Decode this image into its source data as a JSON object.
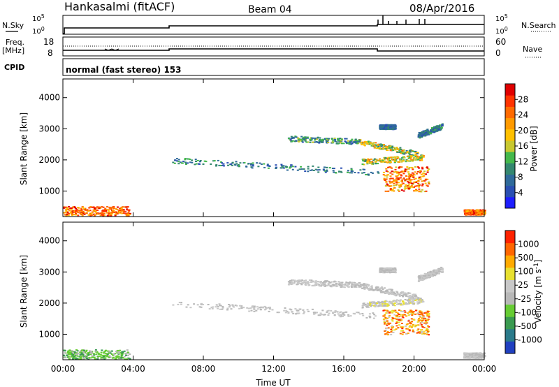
{
  "header": {
    "station": "Hankasalmi (fitACF)",
    "beam": "Beam 04",
    "date": "08/Apr/2016"
  },
  "side_labels": {
    "nsky": "N.Sky",
    "nsearch": "N.Search",
    "freq": "Freq.",
    "freq_unit": "[MHz]",
    "nave": "Nave",
    "cpid": "CPID"
  },
  "noise_axis": {
    "top": "10^5",
    "bottom": "10^0"
  },
  "freq_axis": {
    "left_ticks": [
      "18",
      "8"
    ],
    "right_ticks": [
      "60",
      "0"
    ]
  },
  "cpid_text": "normal (fast stereo) 153",
  "chart_data": [
    {
      "type": "heatmap",
      "title": "",
      "xlabel": "Time UT",
      "ylabel": "Slant Range [km]",
      "xlim": [
        0,
        24
      ],
      "ylim": [
        180,
        4600
      ],
      "x_ticks": [
        "00:00",
        "04:00",
        "08:00",
        "12:00",
        "16:00",
        "20:00",
        "00:00"
      ],
      "y_ticks": [
        1000,
        2000,
        3000,
        4000
      ],
      "colorbar": {
        "label": "Power [dB]",
        "ticks": [
          "4",
          "8",
          "12",
          "16",
          "20",
          "24",
          "28"
        ],
        "colors": [
          "#1e1eff",
          "#2a4fb2",
          "#2f6a9a",
          "#34876f",
          "#44b84b",
          "#c8c830",
          "#ffc000",
          "#ff9a00",
          "#ff6a00",
          "#ff3300",
          "#e00000"
        ]
      },
      "structures": [
        {
          "kind": "blob",
          "t": [
            0.0,
            3.8
          ],
          "r": [
            220,
            520
          ],
          "level": [
            6,
            10
          ]
        },
        {
          "kind": "line",
          "t": [
            6.2,
            18.0
          ],
          "r": [
            2000,
            1600
          ],
          "level": [
            1,
            4
          ]
        },
        {
          "kind": "line",
          "t": [
            12.8,
            16.8
          ],
          "r": [
            2700,
            2600
          ],
          "level": [
            1,
            5
          ]
        },
        {
          "kind": "line",
          "t": [
            16.8,
            20.2
          ],
          "r": [
            2600,
            2200
          ],
          "level": [
            2,
            8
          ]
        },
        {
          "kind": "line",
          "t": [
            17.0,
            20.5
          ],
          "r": [
            1950,
            2100
          ],
          "level": [
            3,
            8
          ]
        },
        {
          "kind": "blob",
          "t": [
            18.2,
            20.8
          ],
          "r": [
            1000,
            1800
          ],
          "level": [
            5,
            10
          ]
        },
        {
          "kind": "blob",
          "t": [
            18.0,
            18.9
          ],
          "r": [
            3000,
            3150
          ],
          "level": [
            1,
            3
          ]
        },
        {
          "kind": "line",
          "t": [
            20.2,
            21.6
          ],
          "r": [
            2800,
            3100
          ],
          "level": [
            1,
            4
          ]
        },
        {
          "kind": "blob",
          "t": [
            22.8,
            24.0
          ],
          "r": [
            250,
            420
          ],
          "level": [
            6,
            10
          ]
        }
      ]
    },
    {
      "type": "heatmap",
      "title": "",
      "xlabel": "Time UT",
      "ylabel": "Slant Range [km]",
      "xlim": [
        0,
        24
      ],
      "ylim": [
        180,
        4600
      ],
      "x_ticks": [
        "00:00",
        "04:00",
        "08:00",
        "12:00",
        "16:00",
        "20:00",
        "00:00"
      ],
      "y_ticks": [
        1000,
        2000,
        3000,
        4000
      ],
      "colorbar": {
        "label": "Velocity [m s-1]",
        "ticks": [
          "1000",
          "500",
          "100",
          "25",
          "-25",
          "-100",
          "-500",
          "-1000"
        ],
        "colors": [
          "#2040c0",
          "#2a7a8a",
          "#3a9a50",
          "#66cc33",
          "#b8b8b8",
          "#c8c8c8",
          "#e8e030",
          "#ffaa00",
          "#ff6600",
          "#ff2200"
        ]
      },
      "structures": [
        {
          "kind": "blob",
          "t": [
            0.0,
            3.8
          ],
          "r": [
            220,
            520
          ],
          "level": [
            2,
            4
          ]
        },
        {
          "kind": "line",
          "t": [
            6.2,
            18.0
          ],
          "r": [
            2000,
            1600
          ],
          "level": [
            4,
            5
          ]
        },
        {
          "kind": "line",
          "t": [
            12.8,
            16.8
          ],
          "r": [
            2700,
            2600
          ],
          "level": [
            4,
            5
          ]
        },
        {
          "kind": "line",
          "t": [
            16.8,
            20.2
          ],
          "r": [
            2600,
            2200
          ],
          "level": [
            4,
            5
          ]
        },
        {
          "kind": "line",
          "t": [
            17.0,
            20.5
          ],
          "r": [
            1950,
            2100
          ],
          "level": [
            4,
            6
          ]
        },
        {
          "kind": "blob",
          "t": [
            18.2,
            20.8
          ],
          "r": [
            1000,
            1800
          ],
          "level": [
            5,
            9
          ]
        },
        {
          "kind": "blob",
          "t": [
            18.0,
            18.9
          ],
          "r": [
            3000,
            3150
          ],
          "level": [
            4,
            5
          ]
        },
        {
          "kind": "line",
          "t": [
            20.2,
            21.6
          ],
          "r": [
            2800,
            3100
          ],
          "level": [
            4,
            5
          ]
        },
        {
          "kind": "blob",
          "t": [
            22.8,
            24.0
          ],
          "r": [
            250,
            420
          ],
          "level": [
            4,
            5
          ]
        }
      ]
    }
  ]
}
